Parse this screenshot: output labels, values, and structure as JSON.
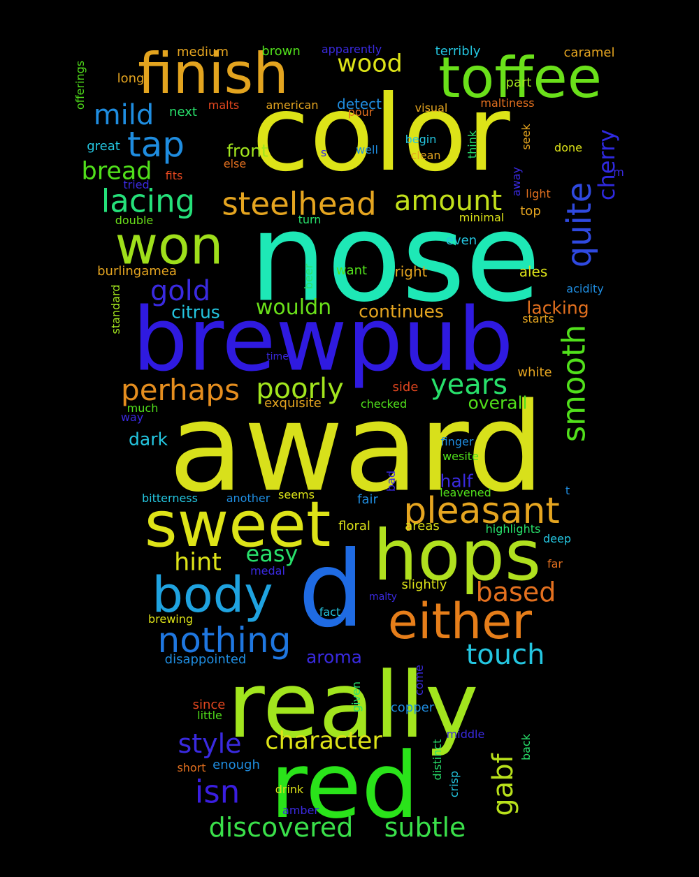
{
  "words": [
    {
      "text": "award",
      "color": "#d8e01b"
    },
    {
      "text": "nose",
      "color": "#1ee8b6"
    },
    {
      "text": "color",
      "color": "#dde318"
    },
    {
      "text": "brewpub",
      "color": "#2f1ae0"
    },
    {
      "text": "really",
      "color": "#a2e51e"
    },
    {
      "text": "red",
      "color": "#2ae31a"
    },
    {
      "text": "d",
      "color": "#1f6be3"
    },
    {
      "text": "hops",
      "color": "#b0e01f"
    },
    {
      "text": "sweet",
      "color": "#dde318"
    },
    {
      "text": "finish",
      "color": "#e3a41f"
    },
    {
      "text": "toffee",
      "color": "#6ae01a"
    },
    {
      "text": "won",
      "color": "#9fdf1b"
    },
    {
      "text": "either",
      "color": "#e67e1a"
    },
    {
      "text": "body",
      "color": "#1fa3e0"
    },
    {
      "text": "pleasant",
      "color": "#e5a520"
    },
    {
      "text": "nothing",
      "color": "#1f77e0"
    },
    {
      "text": "steelhead",
      "color": "#e5a520"
    },
    {
      "text": "lacing",
      "color": "#25e07a"
    },
    {
      "text": "smooth",
      "color": "#51e01b"
    },
    {
      "text": "quite",
      "color": "#2f49e0"
    },
    {
      "text": "perhaps",
      "color": "#e58e1f"
    },
    {
      "text": "poorly",
      "color": "#a2e51e"
    },
    {
      "text": "years",
      "color": "#28e06b"
    },
    {
      "text": "amount",
      "color": "#c2e01b"
    },
    {
      "text": "tap",
      "color": "#1f8de0"
    },
    {
      "text": "discovered",
      "color": "#3ae04a"
    },
    {
      "text": "subtle",
      "color": "#3ae04a"
    },
    {
      "text": "character",
      "color": "#dde318"
    },
    {
      "text": "isn",
      "color": "#3a1ee0"
    },
    {
      "text": "style",
      "color": "#3a2ae0"
    },
    {
      "text": "gabf",
      "color": "#b8e01b"
    },
    {
      "text": "touch",
      "color": "#24c6e0"
    },
    {
      "text": "gold",
      "color": "#3a2ae0"
    },
    {
      "text": "mild",
      "color": "#1f8de0"
    },
    {
      "text": "hint",
      "color": "#dde318"
    },
    {
      "text": "based",
      "color": "#e3701f"
    },
    {
      "text": "bread",
      "color": "#51e01b"
    },
    {
      "text": "wood",
      "color": "#dde318"
    },
    {
      "text": "cherry",
      "color": "#2f2ae0"
    },
    {
      "text": "easy",
      "color": "#28e06b"
    },
    {
      "text": "wouldn",
      "color": "#6ae01a"
    },
    {
      "text": "continues",
      "color": "#e5a520"
    },
    {
      "text": "front",
      "color": "#a2e51e"
    },
    {
      "text": "citrus",
      "color": "#24c6e0"
    },
    {
      "text": "lacking",
      "color": "#e3701f"
    },
    {
      "text": "overall",
      "color": "#51e01b"
    },
    {
      "text": "half",
      "color": "#3a2ae0"
    },
    {
      "text": "aroma",
      "color": "#3a2ae0"
    },
    {
      "text": "dark",
      "color": "#24c6e0"
    },
    {
      "text": "medium",
      "color": "#e5a520"
    },
    {
      "text": "brown",
      "color": "#51e01b"
    },
    {
      "text": "apparently",
      "color": "#3a2ae0"
    },
    {
      "text": "terribly",
      "color": "#24c6e0"
    },
    {
      "text": "caramel",
      "color": "#e5a520"
    },
    {
      "text": "long",
      "color": "#e5a520"
    },
    {
      "text": "part",
      "color": "#a2e51e"
    },
    {
      "text": "offerings",
      "color": "#51e01b"
    },
    {
      "text": "next",
      "color": "#28e06b"
    },
    {
      "text": "malts",
      "color": "#e3471f"
    },
    {
      "text": "american",
      "color": "#e5a520"
    },
    {
      "text": "detect",
      "color": "#1f8de0"
    },
    {
      "text": "pour",
      "color": "#e3701f"
    },
    {
      "text": "visual",
      "color": "#e5a520"
    },
    {
      "text": "maltiness",
      "color": "#e3701f"
    },
    {
      "text": "great",
      "color": "#24c6e0"
    },
    {
      "text": "s",
      "color": "#3a2ae0"
    },
    {
      "text": "well",
      "color": "#1f8de0"
    },
    {
      "text": "begin",
      "color": "#24c6e0"
    },
    {
      "text": "clean",
      "color": "#e5a520"
    },
    {
      "text": "think",
      "color": "#28e06b"
    },
    {
      "text": "seek",
      "color": "#e5a520"
    },
    {
      "text": "done",
      "color": "#dde318"
    },
    {
      "text": "else",
      "color": "#e3701f"
    },
    {
      "text": "tried",
      "color": "#3a2ae0"
    },
    {
      "text": "fits",
      "color": "#e3471f"
    },
    {
      "text": "away",
      "color": "#3a2ae0"
    },
    {
      "text": "light",
      "color": "#e3701f"
    },
    {
      "text": "m",
      "color": "#3a2ae0"
    },
    {
      "text": "top",
      "color": "#e5a520"
    },
    {
      "text": "double",
      "color": "#6ae01a"
    },
    {
      "text": "turn",
      "color": "#28e06b"
    },
    {
      "text": "minimal",
      "color": "#dde318"
    },
    {
      "text": "even",
      "color": "#24c6e0"
    },
    {
      "text": "burlingamea",
      "color": "#e5a520"
    },
    {
      "text": "want",
      "color": "#51e01b"
    },
    {
      "text": "right",
      "color": "#e5a520"
    },
    {
      "text": "ales",
      "color": "#dde318"
    },
    {
      "text": "beer",
      "color": "#28e06b"
    },
    {
      "text": "acidity",
      "color": "#1f8de0"
    },
    {
      "text": "standard",
      "color": "#a2e51e"
    },
    {
      "text": "starts",
      "color": "#e5a520"
    },
    {
      "text": "time",
      "color": "#3a2ae0"
    },
    {
      "text": "white",
      "color": "#e5a520"
    },
    {
      "text": "side",
      "color": "#e3471f"
    },
    {
      "text": "exquisite",
      "color": "#e5a520"
    },
    {
      "text": "checked",
      "color": "#51e01b"
    },
    {
      "text": "much",
      "color": "#51e01b"
    },
    {
      "text": "way",
      "color": "#3a2ae0"
    },
    {
      "text": "finger",
      "color": "#1f8de0"
    },
    {
      "text": "wesite",
      "color": "#51e01b"
    },
    {
      "text": "bad",
      "color": "#3a2ae0"
    },
    {
      "text": "t",
      "color": "#1f8de0"
    },
    {
      "text": "leavened",
      "color": "#51e01b"
    },
    {
      "text": "bitterness",
      "color": "#24c6e0"
    },
    {
      "text": "another",
      "color": "#1f8de0"
    },
    {
      "text": "seems",
      "color": "#dde318"
    },
    {
      "text": "fair",
      "color": "#1f8de0"
    },
    {
      "text": "floral",
      "color": "#dde318"
    },
    {
      "text": "areas",
      "color": "#dde318"
    },
    {
      "text": "highlights",
      "color": "#28e06b"
    },
    {
      "text": "deep",
      "color": "#24c6e0"
    },
    {
      "text": "far",
      "color": "#e3701f"
    },
    {
      "text": "medal",
      "color": "#3a2ae0"
    },
    {
      "text": "slightly",
      "color": "#dde318"
    },
    {
      "text": "malty",
      "color": "#3a2ae0"
    },
    {
      "text": "fact",
      "color": "#24c6e0"
    },
    {
      "text": "brewing",
      "color": "#dde318"
    },
    {
      "text": "disappointed",
      "color": "#1f8de0"
    },
    {
      "text": "since",
      "color": "#e3471f"
    },
    {
      "text": "little",
      "color": "#51e01b"
    },
    {
      "text": "given",
      "color": "#28e06b"
    },
    {
      "text": "come",
      "color": "#3a2ae0"
    },
    {
      "text": "copper",
      "color": "#1f8de0"
    },
    {
      "text": "middle",
      "color": "#3a2ae0"
    },
    {
      "text": "back",
      "color": "#28e06b"
    },
    {
      "text": "distinct",
      "color": "#28e06b"
    },
    {
      "text": "crisp",
      "color": "#24c6e0"
    },
    {
      "text": "short",
      "color": "#e3701f"
    },
    {
      "text": "enough",
      "color": "#1f8de0"
    },
    {
      "text": "drink",
      "color": "#dde318"
    },
    {
      "text": "amber",
      "color": "#3a2ae0"
    }
  ]
}
